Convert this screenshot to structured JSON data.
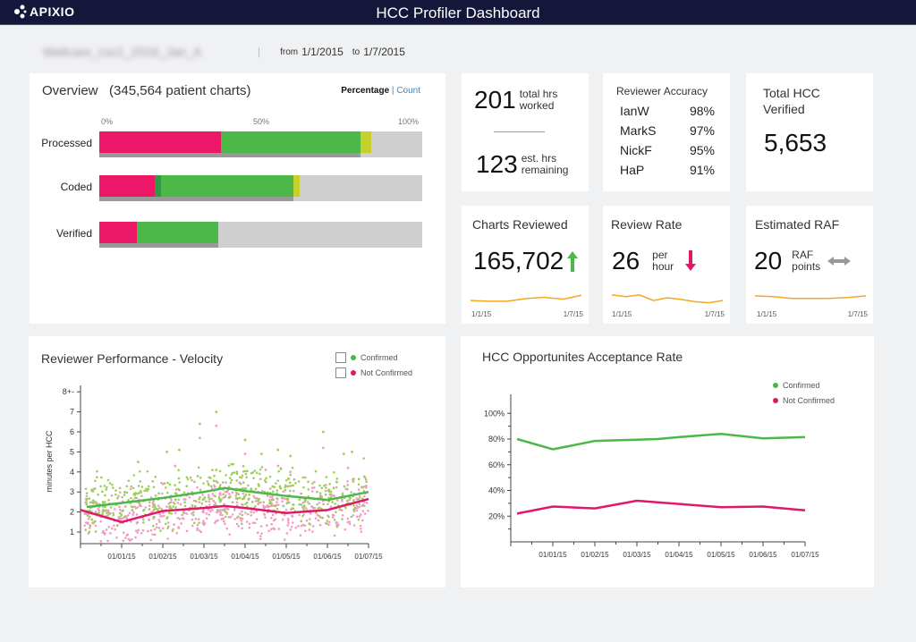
{
  "header": {
    "logo": "APIXIO",
    "title": "HCC Profiler Dashboard"
  },
  "subheader": {
    "project": "Wellcare_csv1_2016_Jan_A",
    "from_label": "from",
    "from": "1/1/2015",
    "to_label": "to",
    "to": "1/7/2015"
  },
  "overview": {
    "title": "Overview",
    "count": "(345,564 patient charts)",
    "toggle": {
      "active": "Percentage",
      "sep": "|",
      "other": "Count"
    },
    "scale": [
      "0%",
      "50%",
      "100%"
    ],
    "rows": [
      {
        "label": "Processed",
        "segments": [
          {
            "color": "#ec1766",
            "pct": 37.7
          },
          {
            "color": "#4cb84a",
            "pct": 43.2
          },
          {
            "color": "#c8cf2a",
            "pct": 3.3
          }
        ],
        "underline_pct": 80.9
      },
      {
        "label": "Coded",
        "segments": [
          {
            "color": "#ec1766",
            "pct": 17.2
          },
          {
            "color": "#2e9a45",
            "pct": 1.9
          },
          {
            "color": "#4cb84a",
            "pct": 41.0
          },
          {
            "color": "#c8cf2a",
            "pct": 1.9
          }
        ],
        "underline_pct": 60.1
      },
      {
        "label": "Verified",
        "segments": [
          {
            "color": "#ec1766",
            "pct": 11.6
          },
          {
            "color": "#4cb84a",
            "pct": 25.2
          }
        ],
        "underline_pct": 36.8
      }
    ]
  },
  "hours": {
    "worked": "201",
    "worked_label1": "total hrs",
    "worked_label2": "worked",
    "remaining": "123",
    "remaining_label1": "est. hrs",
    "remaining_label2": "remaining"
  },
  "accuracy": {
    "title": "Reviewer Accuracy",
    "rows": [
      {
        "name": "IanW",
        "value": "98%"
      },
      {
        "name": "MarkS",
        "value": "97%"
      },
      {
        "name": "NickF",
        "value": "95%"
      },
      {
        "name": "HaP",
        "value": "91%"
      }
    ]
  },
  "hcc_verified": {
    "title1": "Total HCC",
    "title2": "Verified",
    "value": "5,653"
  },
  "charts_reviewed": {
    "title": "Charts Reviewed",
    "value": "165,702",
    "trend": "up",
    "trend_color": "#4cb84a",
    "spark": [
      3.0,
      2.9,
      2.9,
      3.3,
      3.5,
      3.2,
      3.8
    ],
    "start": "1/1/15",
    "end": "1/7/15"
  },
  "review_rate": {
    "title": "Review Rate",
    "value": "26",
    "unit1": "per",
    "unit2": "hour",
    "trend": "down",
    "trend_color": "#e0186a",
    "spark": [
      4.0,
      3.7,
      4.0,
      3.0,
      3.5,
      3.2,
      2.8,
      2.6,
      3.0
    ],
    "start": "1/1/15",
    "end": "1/7/15"
  },
  "raf": {
    "title": "Estimated RAF",
    "value": "20",
    "unit1": "RAF",
    "unit2": "points",
    "trend": "flat",
    "trend_color": "#999999",
    "spark": [
      3.0,
      2.9,
      2.7,
      2.7,
      2.7,
      2.8,
      3.0
    ],
    "start": "1/1/15",
    "end": "1/7/15"
  },
  "spark_color": "#f5a623",
  "chart_data": [
    {
      "type": "scatter",
      "title": "Reviewer Performance - Velocity",
      "ylabel": "minutes per HCC",
      "yticks": [
        "1",
        "2",
        "3",
        "4",
        "5",
        "6",
        "7",
        "8+-"
      ],
      "ylim": [
        0.5,
        8
      ],
      "xticks": [
        "01/01/15",
        "01/02/15",
        "01/03/15",
        "01/04/15",
        "01/05/15",
        "01/06/15",
        "01/07/15"
      ],
      "legend": [
        {
          "name": "Confirmed",
          "color": "#4cb84a",
          "point_color": "#9ccf5a"
        },
        {
          "name": "Not Confirmed",
          "color": "#e0186a",
          "point_color": "#f29ac4"
        }
      ],
      "trend_lines": [
        {
          "name": "Confirmed",
          "x": [
            0.15,
            1,
            2,
            3,
            3.5,
            4,
            5,
            6,
            7
          ],
          "y": [
            2.25,
            2.45,
            2.7,
            3.0,
            3.2,
            3.05,
            2.8,
            2.6,
            3.0
          ]
        },
        {
          "name": "Not Confirmed",
          "x": [
            0.0,
            1,
            2,
            3,
            3.5,
            4,
            5,
            6,
            7
          ],
          "y": [
            2.1,
            1.5,
            2.05,
            2.2,
            2.3,
            2.2,
            1.95,
            2.1,
            2.65
          ]
        }
      ],
      "outliers": [
        {
          "series": "Confirmed",
          "x": [
            1.4,
            2.1,
            2.4,
            2.9,
            3.3,
            3.3,
            4.0,
            4.4,
            4.8,
            5.1,
            5.9,
            6.4,
            6.6
          ],
          "y": [
            4.5,
            5.0,
            5.1,
            6.4,
            7.0,
            4.1,
            5.6,
            4.9,
            5.1,
            4.8,
            6.0,
            4.9,
            5.0
          ]
        },
        {
          "series": "Not Confirmed",
          "x": [
            2.3,
            2.9,
            3.3,
            4.0,
            4.5,
            4.8,
            5.1,
            5.9,
            6.5
          ],
          "y": [
            4.3,
            5.7,
            6.3,
            4.9,
            4.1,
            4.3,
            4.0,
            5.2,
            4.2
          ]
        }
      ]
    },
    {
      "type": "line",
      "title": "HCC Opportunites Acceptance Rate",
      "yticks": [
        "20%",
        "40%",
        "60%",
        "80%",
        "100%"
      ],
      "ylim": [
        0,
        110
      ],
      "xticks": [
        "01/01/15",
        "01/02/15",
        "01/03/15",
        "01/04/15",
        "01/05/15",
        "01/06/15",
        "01/07/15"
      ],
      "series": [
        {
          "name": "Confirmed",
          "color": "#4cb84a",
          "x": [
            0.15,
            1,
            2,
            3,
            3.5,
            4,
            5,
            6,
            7
          ],
          "y": [
            80,
            72,
            78.5,
            79.5,
            80,
            81.5,
            84,
            80.5,
            81.5
          ]
        },
        {
          "name": "Not Confirmed",
          "color": "#e0186a",
          "x": [
            0.15,
            1,
            2,
            3,
            4,
            5,
            6,
            7
          ],
          "y": [
            22,
            27.5,
            26,
            32,
            29.5,
            27,
            27.5,
            24.5
          ]
        }
      ]
    }
  ]
}
